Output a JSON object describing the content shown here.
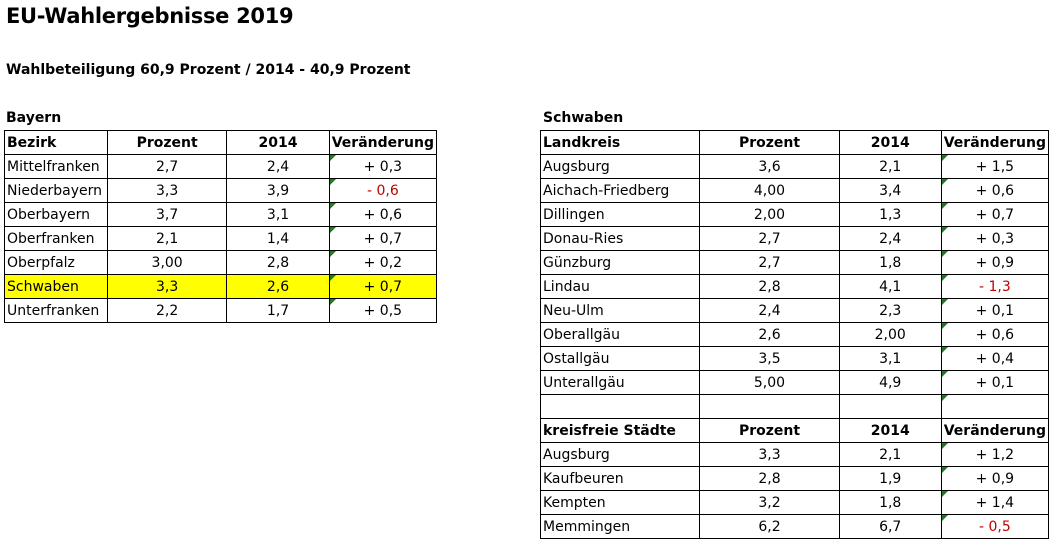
{
  "title": "EU-Wahlergebnisse 2019",
  "subtitle": "Wahlbeteiligung 60,9 Prozent / 2014 - 40,9 Prozent",
  "bayern": {
    "label": "Bayern",
    "headers": [
      "Bezirk",
      "Prozent",
      "2014",
      "Veränderung"
    ],
    "rows": [
      {
        "name": "Mittelfranken",
        "prozent": "2,7",
        "y2014": "2,4",
        "change": "+ 0,3"
      },
      {
        "name": "Niederbayern",
        "prozent": "3,3",
        "y2014": "3,9",
        "change": "- 0,6"
      },
      {
        "name": "Oberbayern",
        "prozent": "3,7",
        "y2014": "3,1",
        "change": "+ 0,6"
      },
      {
        "name": "Oberfranken",
        "prozent": "2,1",
        "y2014": "1,4",
        "change": "+ 0,7"
      },
      {
        "name": "Oberpfalz",
        "prozent": "3,00",
        "y2014": "2,8",
        "change": "+ 0,2"
      },
      {
        "name": "Schwaben",
        "prozent": "3,3",
        "y2014": "2,6",
        "change": "+ 0,7"
      },
      {
        "name": "Unterfranken",
        "prozent": "2,2",
        "y2014": "1,7",
        "change": "+ 0,5"
      }
    ],
    "highlight_color": "#ffff00"
  },
  "schwaben": {
    "label": "Schwaben",
    "headers": [
      "Landkreis",
      "Prozent",
      "2014",
      "Veränderung"
    ],
    "rows": [
      {
        "name": "Augsburg",
        "prozent": "3,6",
        "y2014": "2,1",
        "change": "+ 1,5"
      },
      {
        "name": "Aichach-Friedberg",
        "prozent": "4,00",
        "y2014": "3,4",
        "change": "+ 0,6"
      },
      {
        "name": "Dillingen",
        "prozent": "2,00",
        "y2014": "1,3",
        "change": "+ 0,7"
      },
      {
        "name": "Donau-Ries",
        "prozent": "2,7",
        "y2014": "2,4",
        "change": "+ 0,3"
      },
      {
        "name": "Günzburg",
        "prozent": "2,7",
        "y2014": "1,8",
        "change": "+ 0,9"
      },
      {
        "name": "Lindau",
        "prozent": "2,8",
        "y2014": "4,1",
        "change": "- 1,3"
      },
      {
        "name": "Neu-Ulm",
        "prozent": "2,4",
        "y2014": "2,3",
        "change": "+ 0,1"
      },
      {
        "name": "Oberallgäu",
        "prozent": "2,6",
        "y2014": "2,00",
        "change": "+ 0,6"
      },
      {
        "name": "Ostallgäu",
        "prozent": "3,5",
        "y2014": "3,1",
        "change": "+ 0,4"
      },
      {
        "name": "Unterallgäu",
        "prozent": "5,00",
        "y2014": "4,9",
        "change": "+ 0,1"
      }
    ],
    "staedte_headers": [
      "kreisfreie Städte",
      "Prozent",
      "2014",
      "Veränderung"
    ],
    "staedte_rows": [
      {
        "name": "Augsburg",
        "prozent": "3,3",
        "y2014": "2,1",
        "change": "+ 1,2"
      },
      {
        "name": "Kaufbeuren",
        "prozent": "2,8",
        "y2014": "1,9",
        "change": "+ 0,9"
      },
      {
        "name": "Kempten",
        "prozent": "3,2",
        "y2014": "1,8",
        "change": "+ 1,4"
      },
      {
        "name": "Memmingen",
        "prozent": "6,2",
        "y2014": "6,7",
        "change": "- 0,5"
      }
    ]
  },
  "colors": {
    "negative": "#c00000",
    "comment_marker": "#1e7b1e"
  }
}
